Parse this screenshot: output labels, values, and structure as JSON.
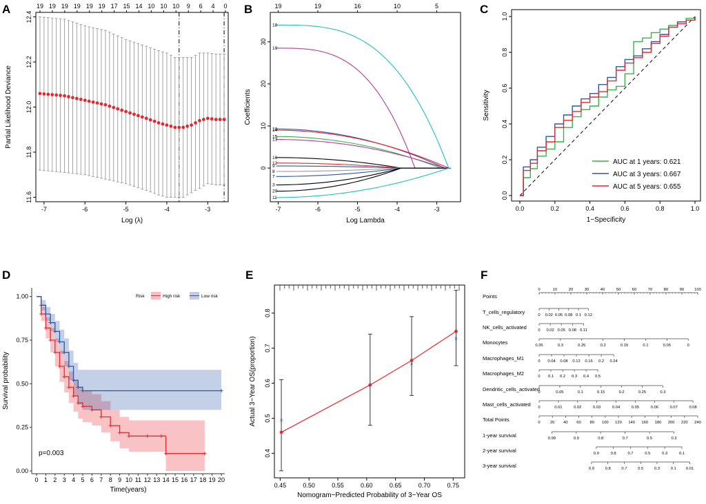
{
  "colors": {
    "red": "#e8262e",
    "gray": "#9a9a9a",
    "cyan": "#1fbfbf",
    "magenta": "#b43a9c",
    "green": "#33b24a",
    "blue": "#2a56a6",
    "black": "#000000"
  },
  "chart_data": [
    {
      "panel": "A",
      "type": "scatter",
      "xlabel": "Log (λ)",
      "ylabel": "Partial Likelihood Deviance",
      "xlim": [
        -7.2,
        -2.5
      ],
      "ylim": [
        11.58,
        12.42
      ],
      "xticks": [
        "-7",
        "-6",
        "-5",
        "-4",
        "-3"
      ],
      "yticks": [
        "11.6",
        "11.8",
        "12.0",
        "12.2",
        "12.4"
      ],
      "top_ticks": [
        "19",
        "19",
        "19",
        "19",
        "19",
        "19",
        "17",
        "15",
        "14",
        "10",
        "10",
        "10",
        "9",
        "6",
        "4",
        "0"
      ],
      "vlines": [
        -3.7,
        -2.6
      ],
      "curve_x": [
        -7.1,
        -6.5,
        -6.0,
        -5.5,
        -5.0,
        -4.5,
        -4.2,
        -4.0,
        -3.8,
        -3.6,
        -3.4,
        -3.2,
        -3.0,
        -2.8,
        -2.6
      ],
      "curve_y": [
        12.06,
        12.05,
        12.03,
        12.01,
        11.98,
        11.95,
        11.93,
        11.92,
        11.91,
        11.91,
        11.92,
        11.94,
        11.95,
        11.945,
        11.945
      ],
      "band_hw": [
        0.34,
        0.34,
        0.33,
        0.33,
        0.32,
        0.32,
        0.32,
        0.32,
        0.31,
        0.31,
        0.3,
        0.3,
        0.29,
        0.29,
        0.29
      ]
    },
    {
      "panel": "B",
      "type": "line",
      "xlabel": "Log Lambda",
      "ylabel": "Coefficients",
      "xlim": [
        -7.2,
        -2.4
      ],
      "ylim": [
        -8,
        37
      ],
      "xticks": [
        "-7",
        "-6",
        "-5",
        "-4",
        "-3"
      ],
      "yticks": [
        "0",
        "10",
        "20",
        "30"
      ],
      "top_ticks": [
        "19",
        "19",
        "16",
        "10",
        "5"
      ],
      "series": [
        {
          "name": "18",
          "color": "cyan",
          "start": 34,
          "end_x": -2.7
        },
        {
          "name": "19",
          "color": "magenta",
          "start": 28.5,
          "end_x": -3.55
        },
        {
          "name": "10",
          "color": "blue",
          "start": 9.3,
          "end_x": -2.8
        },
        {
          "name": "14",
          "color": "red",
          "start": 9,
          "end_x": -2.7
        },
        {
          "name": "15",
          "color": "green",
          "start": 7.5,
          "end_x": -2.9
        },
        {
          "name": "13",
          "color": "magenta",
          "start": 6.8,
          "end_x": -2.8
        },
        {
          "name": "16",
          "color": "black",
          "start": 2.5,
          "end_x": -3.9
        },
        {
          "name": "12",
          "color": "red",
          "start": 1.2,
          "end_x": -3.9
        },
        {
          "name": "9",
          "color": "blue",
          "start": 0.5,
          "end_x": -3.9
        },
        {
          "name": "8",
          "color": "gray",
          "start": -0.8,
          "end_x": -3.9
        },
        {
          "name": "7",
          "color": "blue",
          "start": -2,
          "end_x": -3.9
        },
        {
          "name": "3",
          "color": "black",
          "start": -4,
          "end_x": -3.9
        },
        {
          "name": "20",
          "color": "black",
          "start": -5.5,
          "end_x": -3.9
        },
        {
          "name": "11",
          "color": "cyan",
          "start": -7,
          "end_x": -2.7
        }
      ]
    },
    {
      "panel": "C",
      "type": "line",
      "xlabel": "1−Specificity",
      "ylabel": "Sensitivity",
      "xlim": [
        0,
        1
      ],
      "ylim": [
        0,
        1
      ],
      "xticks": [
        "0.0",
        "0.2",
        "0.4",
        "0.6",
        "0.8",
        "1.0"
      ],
      "yticks": [
        "0.0",
        "0.2",
        "0.4",
        "0.6",
        "0.8",
        "1.0"
      ],
      "series": [
        {
          "name": "AUC at 1 years: 0.621",
          "color": "green",
          "x": [
            0,
            0.02,
            0.06,
            0.1,
            0.15,
            0.2,
            0.25,
            0.3,
            0.35,
            0.4,
            0.45,
            0.5,
            0.55,
            0.6,
            0.65,
            0.7,
            0.75,
            0.8,
            0.85,
            0.9,
            0.95,
            1
          ],
          "y": [
            0,
            0.1,
            0.15,
            0.22,
            0.26,
            0.3,
            0.38,
            0.44,
            0.48,
            0.5,
            0.55,
            0.59,
            0.61,
            0.68,
            0.86,
            0.88,
            0.91,
            0.93,
            0.95,
            0.97,
            0.99,
            1
          ]
        },
        {
          "name": "AUC at 3 years: 0.667",
          "color": "blue",
          "x": [
            0,
            0.02,
            0.06,
            0.1,
            0.15,
            0.2,
            0.25,
            0.3,
            0.35,
            0.4,
            0.45,
            0.5,
            0.55,
            0.6,
            0.65,
            0.7,
            0.75,
            0.8,
            0.85,
            0.9,
            0.95,
            1
          ],
          "y": [
            0,
            0.16,
            0.2,
            0.27,
            0.33,
            0.4,
            0.45,
            0.5,
            0.54,
            0.57,
            0.62,
            0.66,
            0.72,
            0.76,
            0.78,
            0.82,
            0.86,
            0.9,
            0.94,
            0.97,
            0.98,
            1
          ]
        },
        {
          "name": "AUC at 5 years: 0.655",
          "color": "red",
          "x": [
            0,
            0.02,
            0.06,
            0.1,
            0.15,
            0.2,
            0.25,
            0.3,
            0.35,
            0.4,
            0.45,
            0.5,
            0.55,
            0.6,
            0.65,
            0.7,
            0.75,
            0.8,
            0.85,
            0.9,
            0.95,
            1
          ],
          "y": [
            0,
            0.14,
            0.18,
            0.25,
            0.3,
            0.38,
            0.42,
            0.47,
            0.52,
            0.55,
            0.58,
            0.64,
            0.7,
            0.74,
            0.77,
            0.8,
            0.85,
            0.89,
            0.94,
            0.96,
            0.98,
            1
          ]
        }
      ]
    },
    {
      "panel": "D",
      "type": "line",
      "xlabel": "Time(years)",
      "ylabel": "Survival probability",
      "xlim": [
        0,
        20
      ],
      "ylim": [
        0,
        1.05
      ],
      "xticks": [
        "0",
        "1",
        "2",
        "3",
        "4",
        "5",
        "6",
        "7",
        "8",
        "9",
        "10",
        "11",
        "12",
        "13",
        "14",
        "15",
        "16",
        "17",
        "18",
        "19",
        "20"
      ],
      "yticks": [
        "0.00",
        "0.25",
        "0.50",
        "0.75",
        "1.00"
      ],
      "legend_title": "Risk",
      "pvalue": "p=0.003",
      "series": [
        {
          "name": "High risk",
          "color": "red",
          "x": [
            0,
            0.5,
            1,
            1.5,
            2,
            2.5,
            3,
            3.5,
            4,
            4.5,
            5,
            6,
            7,
            8,
            9,
            10,
            12,
            13.5,
            14,
            18.2
          ],
          "y": [
            1,
            0.9,
            0.82,
            0.75,
            0.68,
            0.6,
            0.54,
            0.48,
            0.43,
            0.39,
            0.37,
            0.35,
            0.31,
            0.26,
            0.22,
            0.2,
            0.2,
            0.2,
            0.1,
            0.1
          ],
          "ci_lo": [
            1,
            0.86,
            0.76,
            0.68,
            0.6,
            0.51,
            0.45,
            0.39,
            0.34,
            0.3,
            0.28,
            0.26,
            0.22,
            0.17,
            0.13,
            0.11,
            0.11,
            0.11,
            0.0,
            0.0
          ],
          "ci_hi": [
            1,
            0.94,
            0.88,
            0.82,
            0.76,
            0.69,
            0.63,
            0.57,
            0.52,
            0.48,
            0.46,
            0.44,
            0.4,
            0.35,
            0.31,
            0.29,
            0.29,
            0.29,
            0.29,
            0.29
          ]
        },
        {
          "name": "Low risk",
          "color": "blue",
          "x": [
            0,
            0.5,
            1,
            1.5,
            2,
            2.5,
            3,
            3.5,
            4,
            4.5,
            5,
            20
          ],
          "y": [
            1,
            0.95,
            0.9,
            0.85,
            0.8,
            0.74,
            0.68,
            0.6,
            0.52,
            0.48,
            0.46,
            0.46
          ],
          "ci_lo": [
            1,
            0.92,
            0.86,
            0.8,
            0.74,
            0.67,
            0.6,
            0.52,
            0.43,
            0.38,
            0.35,
            0.35
          ],
          "ci_hi": [
            1,
            0.98,
            0.94,
            0.9,
            0.86,
            0.81,
            0.76,
            0.69,
            0.62,
            0.58,
            0.58,
            0.58
          ]
        }
      ]
    },
    {
      "panel": "E",
      "type": "scatter",
      "xlabel": "Nomogram−Predicted Probability of 3−Year OS",
      "ylabel": "Actual 3−Year OS(proportion)",
      "xlim": [
        0.44,
        0.77
      ],
      "ylim": [
        0.33,
        0.88
      ],
      "xticks": [
        "0.45",
        "0.50",
        "0.55",
        "0.60",
        "0.65",
        "0.70",
        "0.75"
      ],
      "yticks": [
        "0.4",
        "0.5",
        "0.6",
        "0.7",
        "0.8"
      ],
      "points": [
        {
          "x": 0.452,
          "y": 0.46,
          "lo": 0.35,
          "hi": 0.61,
          "obs": 0.495
        },
        {
          "x": 0.606,
          "y": 0.595,
          "lo": 0.48,
          "hi": 0.74,
          "obs": 0.595
        },
        {
          "x": 0.678,
          "y": 0.665,
          "lo": 0.565,
          "hi": 0.79,
          "obs": 0.655
        },
        {
          "x": 0.755,
          "y": 0.748,
          "lo": 0.65,
          "hi": 0.865,
          "obs": 0.728
        }
      ]
    },
    {
      "panel": "F",
      "type": "table",
      "rows": [
        {
          "label": "Points",
          "ticks": [
            "0",
            "10",
            "20",
            "30",
            "40",
            "50",
            "60",
            "70",
            "80",
            "90",
            "100"
          ],
          "start": 0,
          "end": 1
        },
        {
          "label": "T_cells_regulatory",
          "ticks": [
            "0",
            "0.02",
            "0.05",
            "0.08",
            "0.1",
            "0.12"
          ],
          "start": 0,
          "end": 0.31
        },
        {
          "label": "NK_cells_activated",
          "ticks": [
            "0",
            "0.02",
            "0.05",
            "0.08",
            "0.11"
          ],
          "start": 0,
          "end": 0.28
        },
        {
          "label": "Monocytes",
          "ticks": [
            "0.35",
            "0.3",
            "0.25",
            "0.2",
            "0.15",
            "0.1",
            "0.05",
            "0"
          ],
          "start": 0,
          "end": 0.94
        },
        {
          "label": "Macrophages_M1",
          "ticks": [
            "0",
            "0.04",
            "0.08",
            "0.12",
            "0.16",
            "0.2",
            "0.24"
          ],
          "start": 0,
          "end": 0.47
        },
        {
          "label": "Macrophages_M2",
          "ticks": [
            "0",
            "0.1",
            "0.2",
            "0.3",
            "0.4",
            "0.5"
          ],
          "start": 0,
          "end": 0.37
        },
        {
          "label": "Dendritic_cells_activated",
          "ticks": [
            "0",
            "0.05",
            "0.1",
            "0.15",
            "0.2",
            "0.25",
            "0.3"
          ],
          "start": 0,
          "end": 0.78
        },
        {
          "label": "Mast_cells_activated",
          "ticks": [
            "0",
            "0.01",
            "0.02",
            "0.03",
            "0.04",
            "0.05",
            "0.06",
            "0.07",
            "0.08"
          ],
          "start": 0,
          "end": 0.97
        },
        {
          "label": "Total Points",
          "ticks": [
            "0",
            "20",
            "40",
            "60",
            "80",
            "100",
            "120",
            "140",
            "160",
            "180",
            "200",
            "220",
            "240"
          ],
          "start": 0,
          "end": 1
        },
        {
          "label": "1-year survival",
          "ticks": [
            "0.99",
            "0.9",
            "0.8",
            "0.7",
            "0.5",
            "0.3"
          ],
          "start": 0.08,
          "end": 0.85
        },
        {
          "label": "2-year survival",
          "ticks": [
            "0.9",
            "0.8",
            "0.7",
            "0.5",
            "0.3",
            "0.1"
          ],
          "start": 0.36,
          "end": 0.9
        },
        {
          "label": "3-year survival",
          "ticks": [
            "0.9",
            "0.8",
            "0.7",
            "0.5",
            "0.3",
            "0.1",
            "0.01"
          ],
          "start": 0.33,
          "end": 0.95
        }
      ]
    }
  ]
}
